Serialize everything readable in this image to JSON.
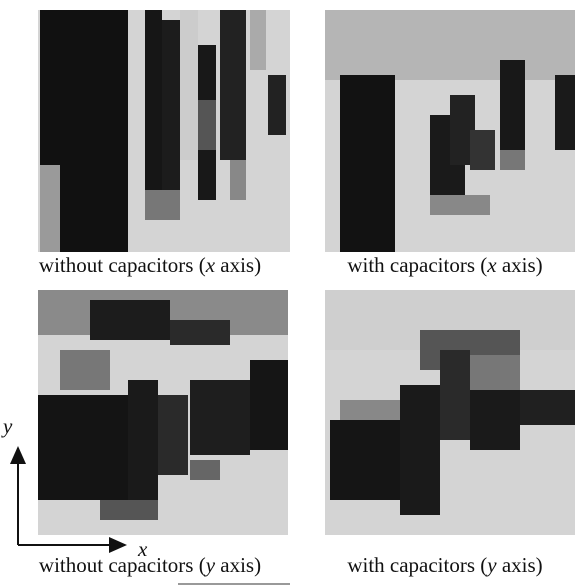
{
  "panels": [
    {
      "caption": {
        "before": "without capacitors (",
        "axis": "x",
        "after": " axis)"
      }
    },
    {
      "caption": {
        "before": "with capacitors (",
        "axis": "x",
        "after": " axis)"
      }
    },
    {
      "caption": {
        "before": "without capacitors (",
        "axis": "y",
        "after": " axis)"
      }
    },
    {
      "caption": {
        "before": "with capacitors (",
        "axis": "y",
        "after": " axis)"
      }
    }
  ],
  "axes": {
    "x_label": "x",
    "y_label": "y"
  }
}
